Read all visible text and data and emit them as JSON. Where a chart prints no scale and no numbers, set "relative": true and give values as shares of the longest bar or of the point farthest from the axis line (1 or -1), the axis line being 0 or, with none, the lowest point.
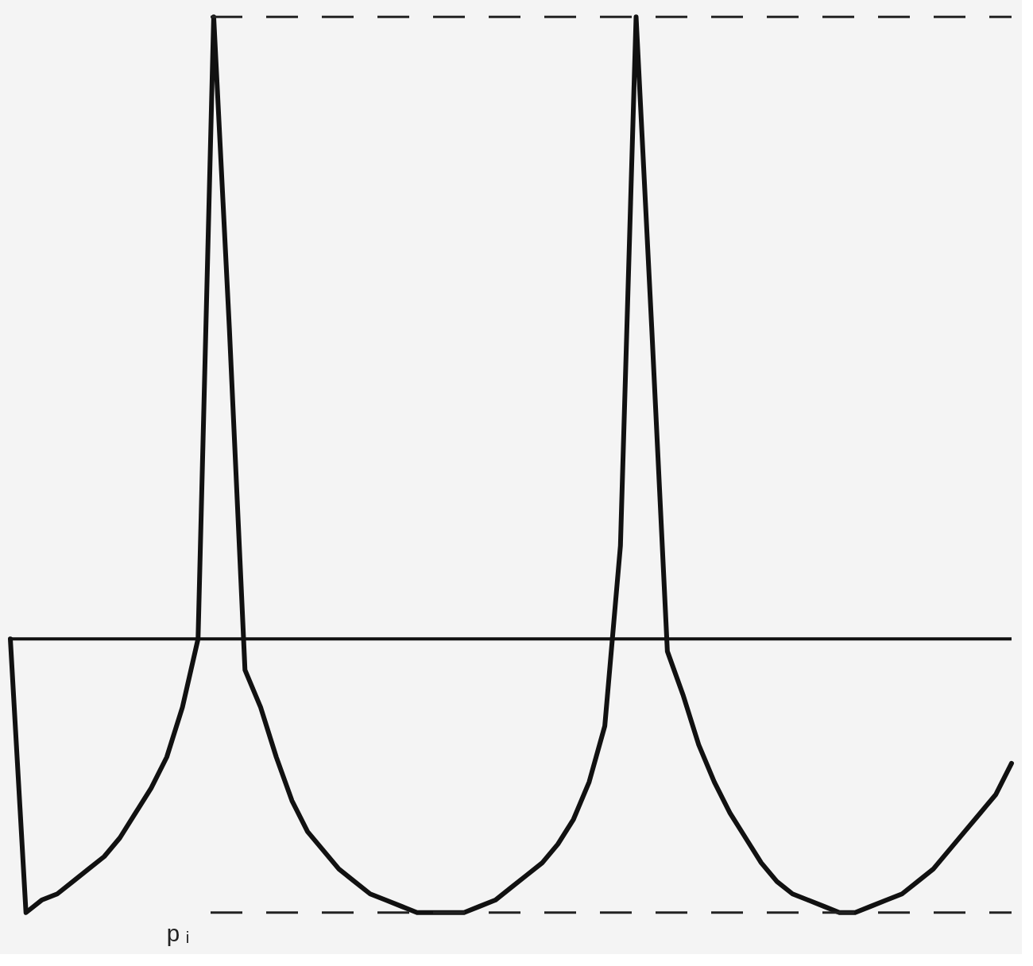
{
  "chart_data": {
    "type": "line",
    "relative": true,
    "tick_labels": false,
    "grid": false,
    "line_style": "solid",
    "marker": "none",
    "categories": [
      null,
      null,
      null,
      null,
      null,
      null,
      null,
      null,
      null,
      null,
      null,
      null,
      null,
      null,
      null,
      null,
      null,
      null,
      null,
      null,
      null,
      null,
      null,
      null,
      null,
      null,
      null,
      null,
      null,
      null,
      null,
      null,
      null,
      null,
      null,
      null,
      null,
      null,
      null,
      null,
      null,
      null,
      null,
      null,
      null,
      null,
      null,
      null,
      null,
      null,
      null,
      null,
      null,
      null,
      null,
      null,
      null,
      null,
      null,
      null,
      null,
      null,
      null,
      null,
      null
    ],
    "series": [
      {
        "color": "#111111",
        "values": [
          0,
          -0.44,
          -0.42,
          -0.41,
          -0.39,
          -0.37,
          -0.35,
          -0.32,
          -0.28,
          -0.24,
          -0.19,
          -0.11,
          0,
          1.0,
          0.5,
          -0.05,
          -0.11,
          -0.19,
          -0.26,
          -0.31,
          -0.34,
          -0.37,
          -0.39,
          -0.41,
          -0.42,
          -0.43,
          -0.44,
          -0.44,
          -0.44,
          -0.44,
          -0.43,
          -0.42,
          -0.4,
          -0.38,
          -0.36,
          -0.33,
          -0.29,
          -0.23,
          -0.14,
          0.15,
          1.0,
          0.5,
          -0.02,
          -0.09,
          -0.17,
          -0.23,
          -0.28,
          -0.32,
          -0.36,
          -0.39,
          -0.41,
          -0.42,
          -0.43,
          -0.44,
          -0.44,
          -0.43,
          -0.42,
          -0.41,
          -0.39,
          -0.37,
          -0.34,
          -0.31,
          -0.28,
          -0.25,
          -0.2
        ]
      }
    ],
    "ref_lines": [
      {
        "axis": "y",
        "value": 1.0,
        "label": null,
        "line_style": "dashed",
        "color": "#222222"
      },
      {
        "axis": "y",
        "value": -0.44,
        "label": "pᵢ",
        "line_style": "dashed",
        "color": "#222222"
      }
    ]
  }
}
